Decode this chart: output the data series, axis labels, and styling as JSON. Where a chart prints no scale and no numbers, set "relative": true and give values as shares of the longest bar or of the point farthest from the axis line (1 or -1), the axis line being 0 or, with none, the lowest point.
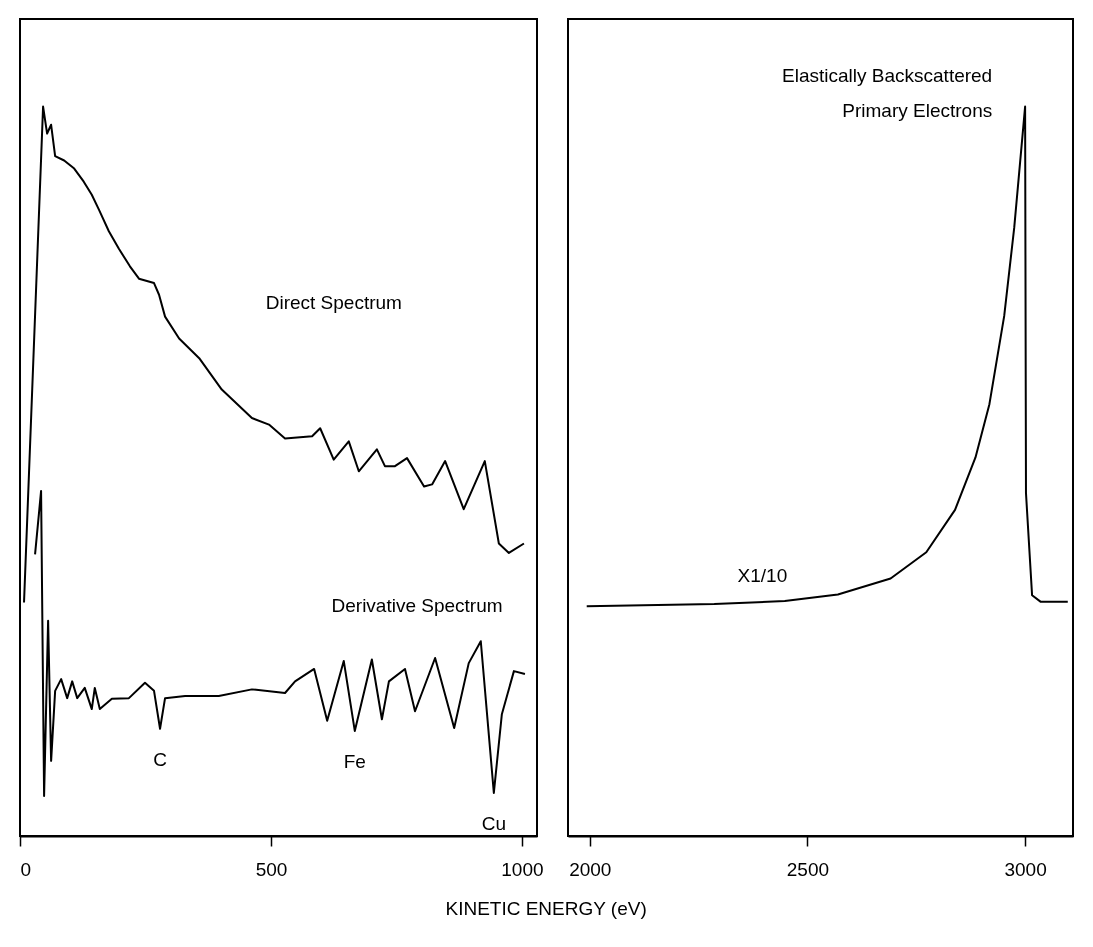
{
  "chart_data": [
    {
      "type": "line",
      "relative": true,
      "xlabel": "KINETIC ENERGY (eV)",
      "xlim": [
        0,
        1030
      ],
      "xticks": [
        0,
        500,
        1000
      ],
      "grid": false,
      "series": [
        {
          "color": "#000000",
          "x": [
            8,
            46,
            54,
            62,
            70,
            88,
            108,
            127,
            143,
            157,
            177,
            197,
            219,
            237,
            267,
            277,
            289,
            317,
            357,
            402,
            462,
            496,
            528,
            582,
            598,
            625,
            655,
            675,
            711,
            727,
            747,
            771,
            805,
            821,
            847,
            884,
            926,
            954,
            974,
            1004
          ],
          "values": [
            0.32,
            1.0,
            0.963,
            0.975,
            0.932,
            0.926,
            0.915,
            0.897,
            0.879,
            0.859,
            0.829,
            0.805,
            0.781,
            0.764,
            0.758,
            0.742,
            0.712,
            0.682,
            0.655,
            0.612,
            0.573,
            0.564,
            0.545,
            0.548,
            0.559,
            0.516,
            0.541,
            0.5,
            0.53,
            0.507,
            0.507,
            0.518,
            0.479,
            0.482,
            0.514,
            0.448,
            0.514,
            0.401,
            0.388,
            0.401
          ]
        },
        {
          "color": "#000000",
          "x": [
            30,
            42,
            48,
            56,
            62,
            70,
            82,
            94,
            104,
            114,
            129,
            143,
            149,
            159,
            183,
            217,
            249,
            267,
            279,
            289,
            329,
            396,
            462,
            528,
            548,
            586,
            612,
            645,
            667,
            701,
            721,
            735,
            767,
            787,
            827,
            865,
            894,
            918,
            944,
            960,
            984,
            1006
          ],
          "values": [
            0.386,
            0.473,
            0.055,
            0.295,
            0.103,
            0.199,
            0.215,
            0.189,
            0.212,
            0.189,
            0.203,
            0.174,
            0.203,
            0.174,
            0.188,
            0.189,
            0.21,
            0.199,
            0.147,
            0.189,
            0.192,
            0.192,
            0.201,
            0.196,
            0.212,
            0.229,
            0.158,
            0.24,
            0.144,
            0.242,
            0.16,
            0.212,
            0.229,
            0.171,
            0.244,
            0.148,
            0.237,
            0.267,
            0.059,
            0.167,
            0.226,
            0.222
          ]
        }
      ],
      "annotations": [
        "Direct Spectrum",
        "Derivative Spectrum",
        {
          "text": "C",
          "x": 279,
          "y": 0.147
        },
        {
          "text": "Fe",
          "x": 667,
          "y": 0.144
        },
        {
          "text": "Cu",
          "x": 944,
          "y": 0.059
        }
      ]
    },
    {
      "type": "line",
      "relative": true,
      "xlim": [
        1950,
        3110
      ],
      "xticks": [
        2000,
        2500,
        3000
      ],
      "grid": false,
      "series": [
        {
          "color": "#000000",
          "x": [
            1993,
            2286,
            2448,
            2570,
            2691,
            2773,
            2839,
            2886,
            2918,
            2952,
            2975,
            3000,
            3002,
            3016,
            3036,
            3098
          ],
          "values": [
            0.315,
            0.318,
            0.322,
            0.331,
            0.353,
            0.389,
            0.447,
            0.519,
            0.592,
            0.713,
            0.834,
            1.0,
            0.47,
            0.33,
            0.321,
            0.321
          ]
        }
      ],
      "annotations": [
        "X1/10",
        "Elastically Backscattered",
        "Primary Electrons"
      ]
    }
  ]
}
